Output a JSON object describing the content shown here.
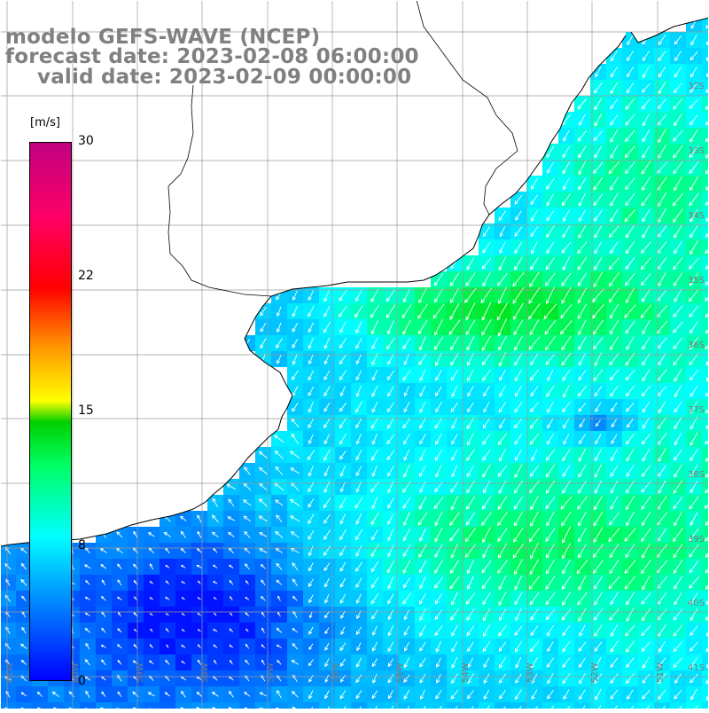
{
  "header": {
    "model": "modelo GEFS-WAVE (NCEP)",
    "forecast_date": "forecast date: 2023-02-08 06:00:00",
    "valid_date": "valid date: 2023-02-09 00:00:00"
  },
  "colorbar": {
    "unit": "[m/s]",
    "tick_labels": [
      "30",
      "22",
      "15",
      "8"
    ],
    "bottom_label": "0",
    "range": [
      0,
      30
    ],
    "colors": [
      "#0000ff",
      "#00ffff",
      "#00ff00",
      "#ffff00",
      "#ff0000",
      "#c00080"
    ]
  },
  "map": {
    "region": "South Atlantic off Uruguay / southern Brazil",
    "lat_labels": [
      "32S",
      "33S",
      "34S",
      "35S",
      "36S",
      "37S",
      "38S",
      "39S",
      "40S",
      "41S"
    ],
    "lon_labels": [
      "61W",
      "60W",
      "59W",
      "58W",
      "57W",
      "56W",
      "55W",
      "54W",
      "53W",
      "52W",
      "51W"
    ],
    "land_color": "#ffffff",
    "coastline_color": "#000000",
    "vector_color": "#ffffff",
    "grid_color": "#b0b0b0"
  }
}
